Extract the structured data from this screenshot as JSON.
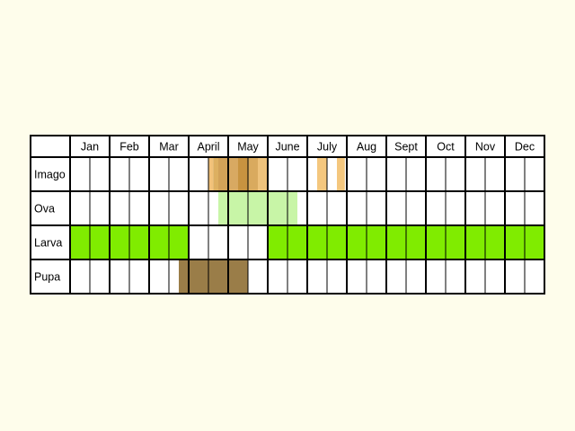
{
  "title": "",
  "months": [
    "Jan",
    "Feb",
    "Mar",
    "April",
    "May",
    "June",
    "July",
    "Aug",
    "Sept",
    "Oct",
    "Nov",
    "Dec"
  ],
  "stages": [
    {
      "key": "imago",
      "label": "Imago",
      "segments": [
        {
          "from": 3.5,
          "to": 3.62,
          "color": "#f2c27a"
        },
        {
          "from": 3.62,
          "to": 3.75,
          "color": "#ddb061"
        },
        {
          "from": 3.75,
          "to": 4.0,
          "color": "#d2a258"
        },
        {
          "from": 4.0,
          "to": 4.25,
          "color": "#d8a962"
        },
        {
          "from": 4.25,
          "to": 4.5,
          "color": "#c89340"
        },
        {
          "from": 4.5,
          "to": 4.75,
          "color": "#d9aa5e"
        },
        {
          "from": 4.75,
          "to": 5.0,
          "color": "#eec27b"
        },
        {
          "from": 6.25,
          "to": 6.5,
          "color": "#f4c77e"
        },
        {
          "from": 6.75,
          "to": 6.95,
          "color": "#f4c77e"
        }
      ]
    },
    {
      "key": "ova",
      "label": "Ova",
      "segments": [
        {
          "from": 3.75,
          "to": 5.75,
          "color": "#c8f5a7"
        }
      ]
    },
    {
      "key": "larva",
      "label": "Larva",
      "segments": [
        {
          "from": 0.0,
          "to": 3.0,
          "color": "#80ec00"
        },
        {
          "from": 5.0,
          "to": 12.0,
          "color": "#80ec00"
        }
      ]
    },
    {
      "key": "pupa",
      "label": "Pupa",
      "segments": [
        {
          "from": 2.75,
          "to": 4.5,
          "color": "#9a7d48"
        }
      ]
    }
  ],
  "chart_data": {
    "type": "table",
    "title": "",
    "columns": [
      "Jan",
      "Feb",
      "Mar",
      "April",
      "May",
      "June",
      "July",
      "Aug",
      "Sept",
      "Oct",
      "Nov",
      "Dec"
    ],
    "rows": [
      {
        "stage": "Imago",
        "active_months": [
          "April",
          "May",
          "July"
        ]
      },
      {
        "stage": "Ova",
        "active_months": [
          "April",
          "May",
          "June"
        ]
      },
      {
        "stage": "Larva",
        "active_months": [
          "Jan",
          "Feb",
          "Mar",
          "June",
          "July",
          "Aug",
          "Sept",
          "Oct",
          "Nov",
          "Dec"
        ]
      },
      {
        "stage": "Pupa",
        "active_months": [
          "Mar",
          "April",
          "May"
        ]
      }
    ]
  }
}
